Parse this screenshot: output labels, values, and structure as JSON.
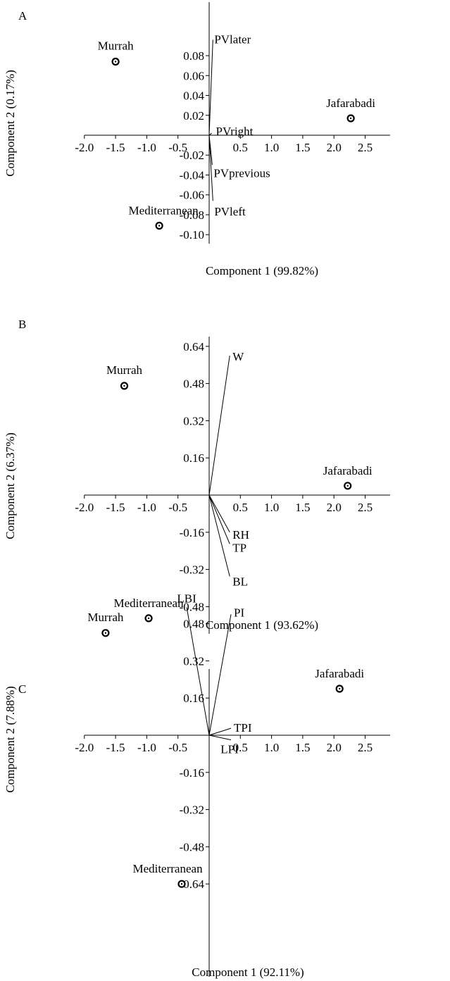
{
  "chart_data": [
    {
      "type": "scatter",
      "panel": "A",
      "xlabel": "Component 1 (99.82%)",
      "ylabel": "Component 2 (0.17%)",
      "xlim": [
        -2.0,
        2.9
      ],
      "ylim": [
        -0.1,
        0.096
      ],
      "xticks": [
        -2.0,
        -1.5,
        -1.0,
        -0.5,
        0.5,
        1.0,
        1.5,
        2.0,
        2.5
      ],
      "yticks": [
        -0.1,
        -0.08,
        -0.06,
        -0.04,
        -0.02,
        0.02,
        0.04,
        0.06,
        0.08
      ],
      "points": [
        {
          "label": "Murrah",
          "x": -1.5,
          "y": 0.074
        },
        {
          "label": "Jafarabadi",
          "x": 2.27,
          "y": 0.017
        },
        {
          "label": "Mediterranean",
          "x": -0.8,
          "y": -0.091
        }
      ],
      "vectors": [
        {
          "label": "PVlater",
          "x": 0.06,
          "y": 0.096
        },
        {
          "label": "PVright",
          "x": 0.04,
          "y": 0.002
        },
        {
          "label": "PVprevious",
          "x": 0.05,
          "y": -0.03
        },
        {
          "label": "PVleft",
          "x": 0.06,
          "y": -0.066
        }
      ]
    },
    {
      "type": "scatter",
      "panel": "B",
      "xlabel": "Component 1 (93.62%)",
      "ylabel": "Component 2 (6.37%)",
      "xlim": [
        -2.0,
        2.9
      ],
      "ylim": [
        -0.62,
        0.68
      ],
      "xticks": [
        -2.0,
        -1.5,
        -1.0,
        -0.5,
        0.5,
        1.0,
        1.5,
        2.0,
        2.5
      ],
      "yticks": [
        -0.48,
        -0.32,
        -0.16,
        0.16,
        0.32,
        0.48,
        0.64
      ],
      "points": [
        {
          "label": "Murrah",
          "x": -1.36,
          "y": 0.47
        },
        {
          "label": "Jafarabadi",
          "x": 2.22,
          "y": 0.04
        },
        {
          "label": "Mediterranean",
          "x": -0.97,
          "y": -0.53
        }
      ],
      "vectors": [
        {
          "label": "W",
          "x": 0.33,
          "y": 0.6
        },
        {
          "label": "RH",
          "x": 0.33,
          "y": -0.16
        },
        {
          "label": "TP",
          "x": 0.33,
          "y": -0.21
        },
        {
          "label": "BL",
          "x": 0.33,
          "y": -0.35
        }
      ]
    },
    {
      "type": "scatter",
      "panel": "C",
      "xlabel": "Component 1 (92.11%)",
      "ylabel": "Component 2 (7.88%)",
      "xlim": [
        -2.0,
        2.9
      ],
      "ylim": [
        -0.71,
        0.58
      ],
      "xticks": [
        -2.0,
        -1.5,
        -1.0,
        -0.5,
        0.5,
        1.0,
        1.5,
        2.0,
        2.5
      ],
      "yticks": [
        -0.64,
        -0.48,
        -0.32,
        -0.16,
        0.16,
        0.32,
        0.48
      ],
      "points": [
        {
          "label": "Murrah",
          "x": -1.66,
          "y": 0.44
        },
        {
          "label": "Jafarabadi",
          "x": 2.09,
          "y": 0.2
        },
        {
          "label": "Mediterranean",
          "x": -0.44,
          "y": -0.64
        }
      ],
      "vectors": [
        {
          "label": "LBI",
          "x": -0.36,
          "y": 0.55
        },
        {
          "label": "PI",
          "x": 0.35,
          "y": 0.52
        },
        {
          "label": "TPI",
          "x": 0.35,
          "y": 0.03
        },
        {
          "label": "LPI",
          "x": 0.35,
          "y": -0.02
        }
      ]
    }
  ]
}
